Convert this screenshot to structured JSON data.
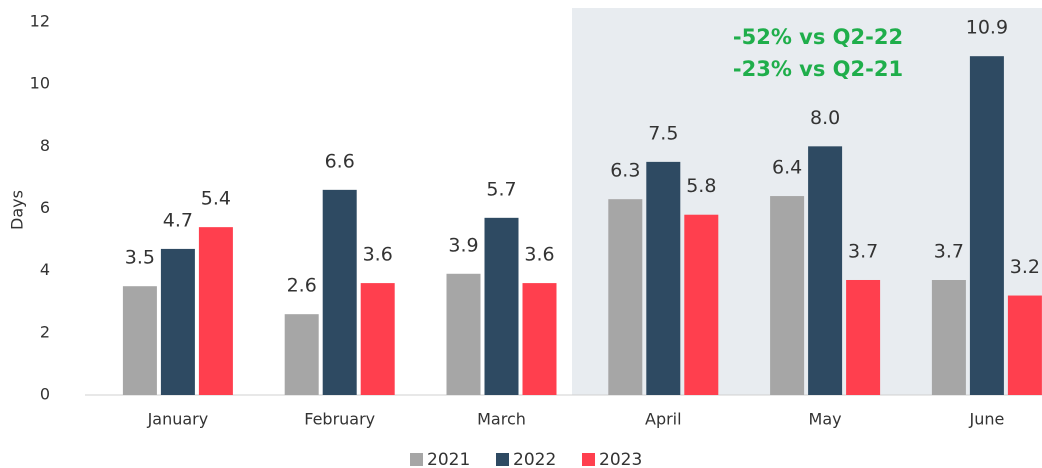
{
  "chart_data": {
    "type": "bar",
    "y_label": "Days",
    "categories": [
      "January",
      "February",
      "March",
      "April",
      "May",
      "June"
    ],
    "series": [
      {
        "name": "2021",
        "color": "#a6a6a6",
        "values": [
          3.5,
          2.6,
          3.9,
          6.3,
          6.4,
          3.7
        ]
      },
      {
        "name": "2022",
        "color": "#2e4a62",
        "values": [
          4.7,
          6.6,
          5.7,
          7.5,
          8.0,
          10.9
        ],
        "value_labels": [
          "4.7",
          "6.6",
          "5.7",
          "7.5",
          "8.0",
          "10.9"
        ]
      },
      {
        "name": "2023",
        "color": "#ff3f4e",
        "values": [
          5.4,
          3.6,
          3.6,
          5.8,
          3.7,
          3.2
        ]
      }
    ],
    "annotations": [
      "-52% vs Q2-22",
      "-23% vs Q2-21"
    ],
    "annotation_color": "#1fae4b",
    "ylim": [
      0,
      12
    ],
    "yticks": [
      0,
      2,
      4,
      6,
      8,
      10,
      12
    ],
    "grid": false,
    "legend": "bottom"
  }
}
